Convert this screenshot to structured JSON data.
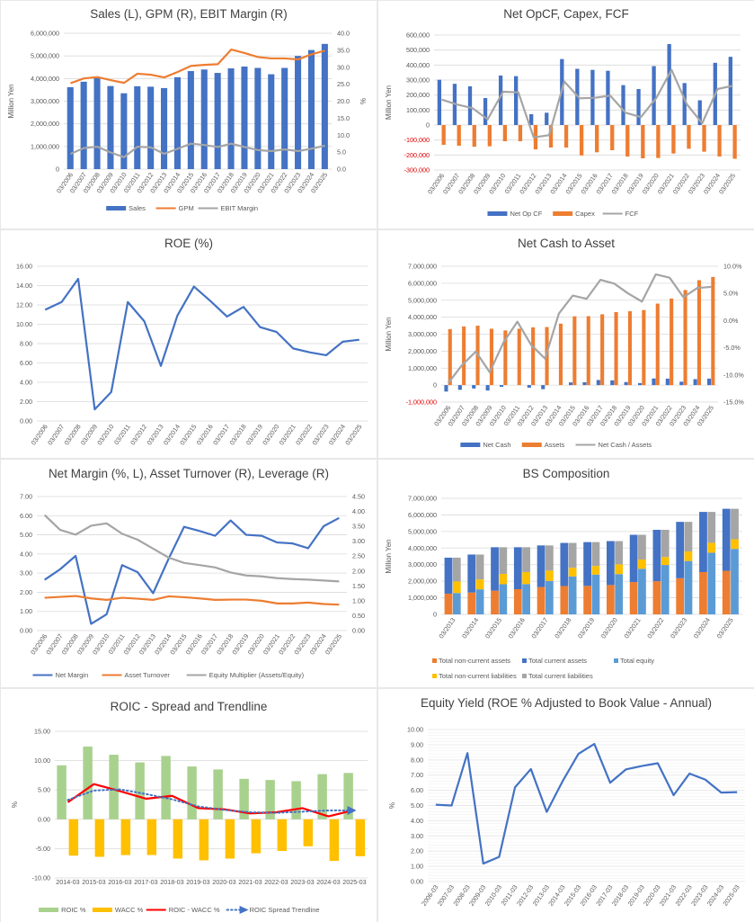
{
  "chart_data": [
    {
      "id": "sales",
      "type": "bar",
      "title": "Sales (L), GPM (R), EBIT Margin (R)",
      "ylabel": "Million Yen",
      "y2label": "%",
      "ylim": [
        0,
        6000000
      ],
      "y2lim": [
        0,
        40
      ],
      "yticks": [
        "0",
        "1,000,000",
        "2,000,000",
        "3,000,000",
        "4,000,000",
        "5,000,000",
        "6,000,000"
      ],
      "y2ticks": [
        "0.0",
        "5.0",
        "10.0",
        "15.0",
        "20.0",
        "25.0",
        "30.0",
        "35.0",
        "40.0"
      ],
      "categories": [
        "03/2006",
        "03/2007",
        "03/2008",
        "03/2009",
        "03/2010",
        "03/2011",
        "03/2012",
        "03/2013",
        "03/2014",
        "03/2015",
        "03/2016",
        "03/2017",
        "03/2018",
        "03/2019",
        "03/2020",
        "03/2021",
        "03/2022",
        "03/2023",
        "03/2024",
        "03/2025"
      ],
      "series": [
        {
          "name": "Sales",
          "kind": "bar",
          "axis": "left",
          "color": "#4472c4",
          "values": [
            3620000,
            3860000,
            4020000,
            3670000,
            3350000,
            3660000,
            3640000,
            3580000,
            4060000,
            4330000,
            4400000,
            4250000,
            4450000,
            4530000,
            4470000,
            4190000,
            4470000,
            5000000,
            5260000,
            5530000
          ]
        },
        {
          "name": "GPM",
          "kind": "line",
          "axis": "right",
          "color": "#ed7d31",
          "values": [
            25.3,
            26.7,
            27.1,
            26.2,
            25.4,
            28.1,
            27.8,
            27.0,
            28.6,
            30.4,
            30.7,
            30.9,
            35.2,
            34.2,
            33.0,
            32.6,
            32.6,
            32.3,
            33.8,
            34.9
          ]
        },
        {
          "name": "EBIT Margin",
          "kind": "line",
          "axis": "right",
          "color": "#a5a5a5",
          "values": [
            4.5,
            6.2,
            6.6,
            4.9,
            3.5,
            6.6,
            6.4,
            4.5,
            6.0,
            7.5,
            7.1,
            6.5,
            7.5,
            6.5,
            5.6,
            5.3,
            5.8,
            5.3,
            6.0,
            6.9
          ]
        }
      ]
    },
    {
      "id": "cashflow",
      "type": "bar",
      "title": "Net OpCF, Capex, FCF",
      "ylabel": "Million Yen",
      "ylim": [
        -300000,
        600000
      ],
      "yticks": [
        "-300,000",
        "-200,000",
        "-100,000",
        "0",
        "100,000",
        "200,000",
        "300,000",
        "400,000",
        "500,000",
        "600,000"
      ],
      "categories": [
        "03/2006",
        "03/2007",
        "03/2008",
        "03/2009",
        "03/2010",
        "03/2011",
        "03/2012",
        "03/2013",
        "03/2014",
        "03/2015",
        "03/2016",
        "03/2017",
        "03/2018",
        "03/2019",
        "03/2020",
        "03/2021",
        "03/2022",
        "03/2023",
        "03/2024",
        "03/2025"
      ],
      "series": [
        {
          "name": "Net Op CF",
          "kind": "bar",
          "color": "#4472c4",
          "values": [
            302000,
            275000,
            258000,
            180000,
            330000,
            326000,
            72000,
            82000,
            440000,
            375000,
            368000,
            362000,
            266000,
            240000,
            393000,
            540000,
            280000,
            165000,
            415000,
            455000
          ]
        },
        {
          "name": "Capex",
          "kind": "bar",
          "color": "#ed7d31",
          "values": [
            -132000,
            -138000,
            -145000,
            -142000,
            -108000,
            -108000,
            -162000,
            -150000,
            -150000,
            -203000,
            -182000,
            -168000,
            -210000,
            -222000,
            -220000,
            -190000,
            -158000,
            -178000,
            -210000,
            -225000
          ]
        },
        {
          "name": "FCF",
          "kind": "line",
          "color": "#a5a5a5",
          "values": [
            170000,
            137000,
            113000,
            38000,
            222000,
            218000,
            -82000,
            -68000,
            290000,
            178000,
            182000,
            196000,
            82000,
            53000,
            180000,
            368000,
            138000,
            12000,
            240000,
            262000
          ]
        }
      ]
    },
    {
      "id": "roe",
      "type": "line",
      "title": "ROE (%)",
      "ylim": [
        0,
        16
      ],
      "yticks": [
        "0.00",
        "2.00",
        "4.00",
        "6.00",
        "8.00",
        "10.00",
        "12.00",
        "14.00",
        "16.00"
      ],
      "categories": [
        "03/2006",
        "03/2007",
        "03/2008",
        "03/2009",
        "03/2010",
        "03/2011",
        "03/2012",
        "03/2013",
        "03/2014",
        "03/2015",
        "03/2016",
        "03/2017",
        "03/2018",
        "03/2019",
        "03/2020",
        "03/2021",
        "03/2022",
        "03/2023",
        "03/2024",
        "03/2025"
      ],
      "series": [
        {
          "name": "ROE",
          "kind": "line",
          "color": "#4472c4",
          "values": [
            11.5,
            12.3,
            14.7,
            1.2,
            3.0,
            12.3,
            10.3,
            5.7,
            10.9,
            13.9,
            12.4,
            10.8,
            11.8,
            9.7,
            9.2,
            7.5,
            7.1,
            6.8,
            8.2,
            8.4
          ]
        }
      ]
    },
    {
      "id": "netcash",
      "type": "bar",
      "title": "Net Cash to Asset",
      "ylabel": "Million Yen",
      "ylim": [
        -1000000,
        7000000
      ],
      "y2lim": [
        -15,
        10
      ],
      "yticks": [
        "-1,000,000",
        "0",
        "1,000,000",
        "2,000,000",
        "3,000,000",
        "4,000,000",
        "5,000,000",
        "6,000,000",
        "7,000,000"
      ],
      "y2ticks": [
        "-15.0%",
        "-10.0%",
        "-5.0%",
        "0.0%",
        "5.0%",
        "10.0%"
      ],
      "categories": [
        "03/2006",
        "03/2007",
        "03/2008",
        "03/2009",
        "03/2010",
        "03/2011",
        "03/2012",
        "03/2013",
        "03/2014",
        "03/2015",
        "03/2016",
        "03/2017",
        "03/2018",
        "03/2019",
        "03/2020",
        "03/2021",
        "03/2022",
        "03/2023",
        "03/2024",
        "03/2025"
      ],
      "series": [
        {
          "name": "Net Cash",
          "kind": "bar",
          "axis": "left",
          "color": "#4472c4",
          "values": [
            -380000,
            -280000,
            -200000,
            -320000,
            -100000,
            0,
            -150000,
            -240000,
            0,
            160000,
            170000,
            300000,
            280000,
            180000,
            120000,
            390000,
            380000,
            200000,
            350000,
            380000
          ]
        },
        {
          "name": "Assets",
          "kind": "bar",
          "axis": "left",
          "color": "#ed7d31",
          "values": [
            3300000,
            3450000,
            3500000,
            3320000,
            3220000,
            3320000,
            3400000,
            3420000,
            3620000,
            4050000,
            4060000,
            4170000,
            4300000,
            4350000,
            4420000,
            4800000,
            5100000,
            5600000,
            6180000,
            6370000
          ]
        },
        {
          "name": "Net Cash / Assets",
          "kind": "line",
          "axis": "right",
          "color": "#a5a5a5",
          "values": [
            -11.5,
            -8.2,
            -5.7,
            -9.5,
            -4.0,
            -0.2,
            -4.5,
            -7.0,
            1.3,
            4.6,
            4.0,
            7.5,
            6.8,
            5.0,
            3.5,
            8.5,
            7.9,
            4.3,
            6.0,
            6.2
          ]
        }
      ]
    },
    {
      "id": "dupont",
      "type": "line",
      "title": "Net Margin (%, L), Asset Turnover (R), Leverage (R)",
      "ylim": [
        0,
        7
      ],
      "y2lim": [
        0,
        4.5
      ],
      "yticks": [
        "0.00",
        "1.00",
        "2.00",
        "3.00",
        "4.00",
        "5.00",
        "6.00",
        "7.00"
      ],
      "y2ticks": [
        "0.00",
        "0.50",
        "1.00",
        "1.50",
        "2.00",
        "2.50",
        "3.00",
        "3.50",
        "4.00",
        "4.50"
      ],
      "categories": [
        "03/2006",
        "03/2007",
        "03/2008",
        "03/2009",
        "03/2010",
        "03/2011",
        "03/2012",
        "03/2013",
        "03/2014",
        "03/2015",
        "03/2016",
        "03/2017",
        "03/2018",
        "03/2019",
        "03/2020",
        "03/2021",
        "03/2022",
        "03/2023",
        "03/2024",
        "03/2025"
      ],
      "series": [
        {
          "name": "Net Margin",
          "kind": "line",
          "axis": "left",
          "color": "#4472c4",
          "values": [
            2.65,
            3.2,
            3.9,
            0.35,
            0.85,
            3.42,
            3.05,
            1.95,
            3.75,
            5.42,
            5.2,
            4.95,
            5.75,
            5.0,
            4.95,
            4.6,
            4.55,
            4.3,
            5.45,
            5.88
          ]
        },
        {
          "name": "Asset Turnover",
          "kind": "line",
          "axis": "right",
          "color": "#ed7d31",
          "values": [
            1.1,
            1.13,
            1.16,
            1.08,
            1.03,
            1.1,
            1.07,
            1.03,
            1.15,
            1.12,
            1.08,
            1.03,
            1.04,
            1.04,
            1.0,
            0.91,
            0.91,
            0.94,
            0.89,
            0.87
          ]
        },
        {
          "name": "Equity Multiplier (Assets/Equity)",
          "kind": "line",
          "axis": "right",
          "color": "#a5a5a5",
          "values": [
            3.88,
            3.38,
            3.22,
            3.52,
            3.6,
            3.25,
            3.05,
            2.75,
            2.45,
            2.27,
            2.2,
            2.12,
            1.95,
            1.85,
            1.82,
            1.76,
            1.73,
            1.71,
            1.68,
            1.65
          ]
        }
      ]
    },
    {
      "id": "bs",
      "type": "bar",
      "title": "BS Composition",
      "ylabel": "Million Yen",
      "ylim": [
        0,
        7000000
      ],
      "yticks": [
        "0",
        "1,000,000",
        "2,000,000",
        "3,000,000",
        "4,000,000",
        "5,000,000",
        "6,000,000",
        "7,000,000"
      ],
      "categories": [
        "03/2013",
        "03/2014",
        "03/2015",
        "03/2016",
        "03/2017",
        "03/2018",
        "03/2019",
        "03/2020",
        "03/2021",
        "03/2022",
        "03/2023",
        "03/2024",
        "03/2025"
      ],
      "series": [
        {
          "name": "Total non-current assets",
          "stack": "assets",
          "color": "#ed7d31",
          "values": [
            1250000,
            1320000,
            1430000,
            1520000,
            1650000,
            1710000,
            1720000,
            1770000,
            1950000,
            2000000,
            2180000,
            2550000,
            2630000
          ]
        },
        {
          "name": "Total current assets",
          "stack": "assets",
          "color": "#4472c4",
          "values": [
            2170000,
            2290000,
            2620000,
            2530000,
            2510000,
            2600000,
            2640000,
            2650000,
            2850000,
            3100000,
            3400000,
            3630000,
            3740000
          ]
        },
        {
          "name": "Total equity",
          "stack": "liab",
          "color": "#5b9bd5",
          "values": [
            1290000,
            1510000,
            1820000,
            1830000,
            2020000,
            2290000,
            2400000,
            2430000,
            2750000,
            2980000,
            3220000,
            3720000,
            3950000
          ]
        },
        {
          "name": "Total non-current liabilities",
          "stack": "liab",
          "color": "#ffc000",
          "values": [
            700000,
            600000,
            620000,
            720000,
            620000,
            520000,
            520000,
            590000,
            560000,
            480000,
            580000,
            600000,
            580000
          ]
        },
        {
          "name": "Total current liabilities",
          "stack": "liab",
          "color": "#a5a5a5",
          "values": [
            1430000,
            1500000,
            1610000,
            1500000,
            1520000,
            1500000,
            1440000,
            1400000,
            1490000,
            1640000,
            1780000,
            1860000,
            1840000
          ]
        }
      ],
      "legend": [
        "Total non-current assets",
        "Total current assets",
        "Total equity",
        "Total non-current liabilities",
        "Total current liabilities"
      ]
    },
    {
      "id": "roic",
      "type": "bar",
      "title": "ROIC - Spread and Trendline",
      "ylabel": "%",
      "ylim": [
        -10,
        15
      ],
      "yticks": [
        "-10.00",
        "-5.00",
        "0.00",
        "5.00",
        "10.00",
        "15.00"
      ],
      "categories": [
        "2014-03",
        "2015-03",
        "2016-03",
        "2017-03",
        "2018-03",
        "2019-03",
        "2020-03",
        "2021-03",
        "2022-03",
        "2023-03",
        "2024-03",
        "2025-03"
      ],
      "series": [
        {
          "name": "ROIC %",
          "kind": "bar",
          "color": "#a9d18e",
          "values": [
            9.2,
            12.4,
            11.0,
            9.7,
            10.8,
            9.0,
            8.5,
            6.9,
            6.7,
            6.5,
            7.7,
            7.9
          ]
        },
        {
          "name": "WACC %",
          "kind": "bar",
          "color": "#ffc000",
          "values": [
            -6.2,
            -6.4,
            -6.1,
            -6.1,
            -6.7,
            -7.0,
            -6.7,
            -5.8,
            -5.4,
            -4.6,
            -7.1,
            -6.3
          ]
        },
        {
          "name": "ROIC - WACC %",
          "kind": "line",
          "color": "#ff0000",
          "values": [
            2.9,
            6.0,
            4.8,
            3.5,
            4.0,
            1.9,
            1.7,
            1.0,
            1.2,
            1.9,
            0.5,
            1.6
          ]
        },
        {
          "name": "ROIC Spread Trendline",
          "kind": "trend",
          "color": "#4472c4",
          "values": [
            3.3,
            4.9,
            5.1,
            4.3,
            3.4,
            2.2,
            1.6,
            1.2,
            1.1,
            1.3,
            1.5,
            1.5
          ]
        }
      ]
    },
    {
      "id": "equityyield",
      "type": "line",
      "title": "Equity Yield (ROE % Adjusted to Book Value - Annual)",
      "ylabel": "%",
      "ylim": [
        0,
        10
      ],
      "yticks": [
        "0.00",
        "1.00",
        "2.00",
        "3.00",
        "4.00",
        "5.00",
        "6.00",
        "7.00",
        "8.00",
        "9.00",
        "10.00"
      ],
      "categories": [
        "2006-03",
        "2007-03",
        "2008-03",
        "2009-03",
        "2010-03",
        "2011-03",
        "2012-03",
        "2013-03",
        "2014-03",
        "2015-03",
        "2016-03",
        "2017-03",
        "2018-03",
        "2019-03",
        "2020-03",
        "2021-03",
        "2022-03",
        "2023-03",
        "2024-03",
        "2025-03"
      ],
      "series": [
        {
          "name": "Equity Yield",
          "kind": "line",
          "color": "#4472c4",
          "values": [
            5.05,
            5.0,
            8.45,
            1.18,
            1.62,
            6.2,
            7.4,
            4.58,
            6.6,
            8.4,
            9.05,
            6.5,
            7.38,
            7.6,
            7.78,
            5.68,
            7.1,
            6.7,
            5.85,
            5.88
          ]
        }
      ]
    }
  ]
}
